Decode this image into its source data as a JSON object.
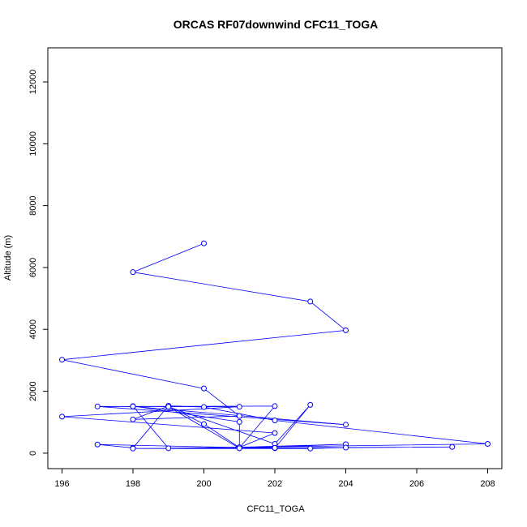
{
  "chart_data": {
    "type": "line",
    "title": "ORCAS RF07downwind CFC11_TOGA",
    "xlabel": "CFC11_TOGA",
    "ylabel": "Altitude (m)",
    "xlim": [
      195.6,
      208.4
    ],
    "ylim": [
      -500,
      13100
    ],
    "x_ticks": [
      196,
      198,
      200,
      202,
      204,
      206,
      208
    ],
    "y_ticks": [
      0,
      2000,
      4000,
      6000,
      8000,
      10000,
      12000
    ],
    "grid": false,
    "marker": "open-circle",
    "series": [
      {
        "color": "#0000ff",
        "points": [
          [
            200,
            6780
          ],
          [
            198,
            5850
          ],
          [
            203,
            4900
          ],
          [
            204,
            3970
          ],
          [
            196,
            3020
          ],
          [
            200,
            2090
          ],
          [
            201,
            1200
          ],
          [
            198,
            1090
          ],
          [
            199,
            1520
          ],
          [
            200,
            940
          ],
          [
            201,
            180
          ],
          [
            197,
            280
          ],
          [
            198,
            170
          ],
          [
            199,
            1530
          ],
          [
            200,
            1490
          ],
          [
            202,
            1060
          ],
          [
            208,
            300
          ],
          [
            199,
            160
          ],
          [
            198,
            1520
          ],
          [
            201,
            1010
          ],
          [
            201,
            170
          ],
          [
            202,
            1520
          ],
          [
            198,
            1510
          ],
          [
            204,
            920
          ],
          [
            197,
            1510
          ],
          [
            201,
            1500
          ],
          [
            196,
            1180
          ],
          [
            202,
            650
          ],
          [
            201,
            190
          ],
          [
            204,
            290
          ],
          [
            201,
            160
          ],
          [
            199,
            1500
          ],
          [
            202,
            300
          ],
          [
            203,
            1560
          ],
          [
            202,
            160
          ],
          [
            207,
            200
          ],
          [
            198,
            150
          ],
          [
            203,
            150
          ],
          [
            204,
            180
          ],
          [
            202,
            170
          ],
          [
            201,
            160
          ]
        ]
      }
    ]
  }
}
